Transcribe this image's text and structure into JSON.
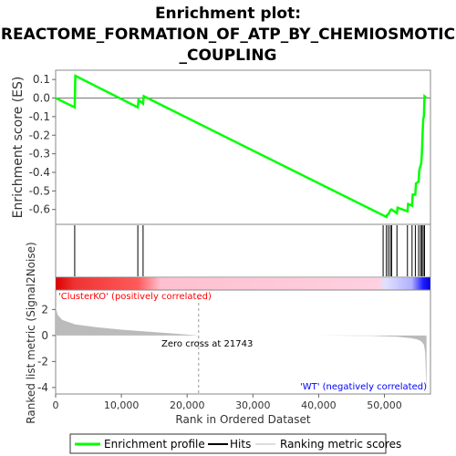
{
  "chart_data": {
    "type": "line",
    "title_lines": [
      "Enrichment plot:",
      "REACTOME_FORMATION_OF_ATP_BY_CHEMIOSMOTIC",
      "_COUPLING"
    ],
    "xlabel": "Rank in Ordered Dataset",
    "xlim": [
      0,
      57000
    ],
    "x_ticks": [
      0,
      10000,
      20000,
      30000,
      40000,
      50000
    ],
    "x_tick_labels": [
      "0",
      "10,000",
      "20,000",
      "30,000",
      "40,000",
      "50,000"
    ],
    "es_panel": {
      "ylabel": "Enrichment score (ES)",
      "ylim": [
        -0.68,
        0.15
      ],
      "y_ticks": [
        0.1,
        0.0,
        -0.1,
        -0.2,
        -0.3,
        -0.4,
        -0.5,
        -0.6
      ],
      "y_tick_labels": [
        "0.1",
        "0.0",
        "-0.1",
        "-0.2",
        "-0.3",
        "-0.4",
        "-0.5",
        "-0.6"
      ],
      "color": "#00ff00",
      "series": {
        "name": "Enrichment profile",
        "x": [
          0,
          2900,
          3000,
          12500,
          12600,
          13300,
          13400,
          50300,
          50400,
          50700,
          50800,
          51000,
          51100,
          51900,
          52000,
          53500,
          53600,
          54200,
          54300,
          54700,
          54800,
          55200,
          55300,
          55600,
          55700,
          55800,
          55900,
          56000,
          56100,
          56400
        ],
        "y": [
          0.0,
          -0.05,
          0.12,
          -0.05,
          -0.01,
          -0.03,
          0.01,
          -0.64,
          -0.63,
          -0.62,
          -0.61,
          -0.6,
          -0.6,
          -0.62,
          -0.59,
          -0.61,
          -0.57,
          -0.58,
          -0.52,
          -0.52,
          -0.46,
          -0.45,
          -0.39,
          -0.35,
          -0.3,
          -0.2,
          -0.11,
          -0.1,
          0.01,
          0.0
        ]
      }
    },
    "hits": [
      2900,
      12500,
      13300,
      49800,
      50300,
      50600,
      50900,
      51100,
      51900,
      53500,
      54200,
      54700,
      55200,
      55500,
      55700,
      55900,
      56100
    ],
    "metric_panel": {
      "ylabel": "Ranked list metric (Signal2Noise)",
      "ylim": [
        -4.5,
        3.5
      ],
      "y_ticks": [
        2,
        0,
        -2,
        -4
      ],
      "y_tick_labels": [
        "2",
        "0",
        "-2",
        "-4"
      ],
      "zero_cross_label": "Zero cross at 21743",
      "zero_cross": 21743,
      "pos_label": "'ClusterKO' (positively correlated)",
      "neg_label": "'WT' (negatively correlated)",
      "profile_x": [
        0,
        300,
        1000,
        3000,
        6000,
        10000,
        14000,
        18000,
        21743,
        30000,
        40000,
        48000,
        50000,
        52000,
        54000,
        55000,
        55600,
        56000,
        56200,
        56300,
        56400
      ],
      "profile_y": [
        2.2,
        1.6,
        1.2,
        0.85,
        0.65,
        0.45,
        0.3,
        0.15,
        0.0,
        0.0,
        0.0,
        -0.03,
        -0.06,
        -0.1,
        -0.2,
        -0.3,
        -0.45,
        -0.7,
        -1.3,
        -3.0,
        -4.3
      ]
    },
    "legend": [
      "Enrichment profile",
      "Hits",
      "Ranking metric scores"
    ],
    "colors": {
      "es": "#00ff00",
      "hits": "#000000",
      "metric": "#bbbbbb",
      "pos": "#ff0000",
      "neg": "#0000ff"
    }
  }
}
